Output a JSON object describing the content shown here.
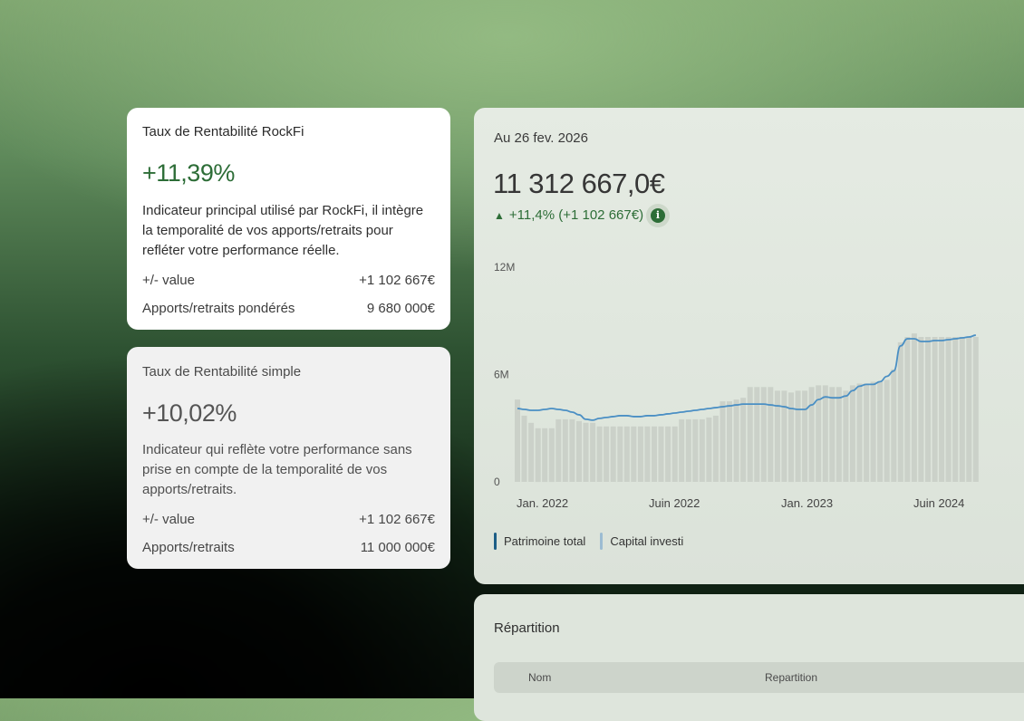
{
  "rockfi_card": {
    "title": "Taux de Rentabilité RockFi",
    "percentage": "+11,39%",
    "description": "Indicateur principal utilisé par RockFi, il intègre la temporalité de vos apports/retraits pour refléter votre performance réelle.",
    "rows": [
      {
        "label": "+/- value",
        "value": "+1 102 667€"
      },
      {
        "label": "Apports/retraits pondérés",
        "value": "9 680 000€"
      }
    ]
  },
  "simple_card": {
    "title": "Taux de Rentabilité simple",
    "percentage": "+10,02%",
    "description": "Indicateur qui reflète votre performance sans prise en compte de la temporalité de vos apports/retraits.",
    "rows": [
      {
        "label": "+/- value",
        "value": "+1 102 667€"
      },
      {
        "label": "Apports/retraits",
        "value": "11 000 000€"
      }
    ]
  },
  "portfolio": {
    "date_label": "Au 26 fev. 2026",
    "total_value": "11 312 667,0€",
    "delta": "+11,4% (+1 102 667€)"
  },
  "chart_data": {
    "type": "area",
    "y_ticks": [
      "12M",
      "6M",
      "0"
    ],
    "x_ticks": [
      "Jan. 2022",
      "Juin 2022",
      "Jan. 2023",
      "Juin 2024"
    ],
    "ylim": [
      0,
      12
    ],
    "series": [
      {
        "name": "Patrimoine total",
        "color": "#4a8fc4",
        "values": [
          4.1,
          4.05,
          4.0,
          4.0,
          4.05,
          4.1,
          4.05,
          4.0,
          3.9,
          3.75,
          3.5,
          3.45,
          3.55,
          3.6,
          3.65,
          3.7,
          3.7,
          3.65,
          3.65,
          3.7,
          3.7,
          3.75,
          3.8,
          3.85,
          3.9,
          3.95,
          4.0,
          4.05,
          4.1,
          4.15,
          4.2,
          4.25,
          4.3,
          4.35,
          4.35,
          4.35,
          4.35,
          4.3,
          4.25,
          4.2,
          4.1,
          4.05,
          4.05,
          4.3,
          4.6,
          4.75,
          4.7,
          4.7,
          4.8,
          5.1,
          5.35,
          5.45,
          5.45,
          5.6,
          5.9,
          6.2,
          7.6,
          8.0,
          8.0,
          7.85,
          7.85,
          7.9,
          7.9,
          7.95,
          8.0,
          8.05,
          8.1,
          8.2
        ]
      },
      {
        "name": "Capital investi",
        "color": "#9cbcd2",
        "values": [
          4.6,
          3.7,
          3.3,
          3.0,
          3.0,
          3.0,
          3.5,
          3.5,
          3.5,
          3.4,
          3.3,
          3.3,
          3.1,
          3.1,
          3.1,
          3.1,
          3.1,
          3.1,
          3.1,
          3.1,
          3.1,
          3.1,
          3.1,
          3.1,
          3.5,
          3.5,
          3.5,
          3.5,
          3.6,
          3.7,
          4.5,
          4.5,
          4.6,
          4.7,
          5.3,
          5.3,
          5.3,
          5.3,
          5.1,
          5.1,
          5.0,
          5.1,
          5.1,
          5.3,
          5.4,
          5.4,
          5.3,
          5.3,
          5.1,
          5.4,
          5.5,
          5.5,
          5.6,
          5.6,
          5.7,
          6.3,
          7.8,
          8.1,
          8.3,
          8.1,
          8.1,
          8.1,
          8.1,
          8.1,
          8.1,
          8.1,
          8.1,
          8.1
        ]
      }
    ],
    "legend": [
      "Patrimoine total",
      "Capital investi"
    ],
    "grid": false
  },
  "repartition": {
    "title": "Répartition",
    "columns": [
      "Nom",
      "Repartition"
    ]
  },
  "colors": {
    "accent_green": "#2d6d37",
    "line_blue": "#4a8fc4",
    "bar_grey": "#cbd1c9"
  }
}
